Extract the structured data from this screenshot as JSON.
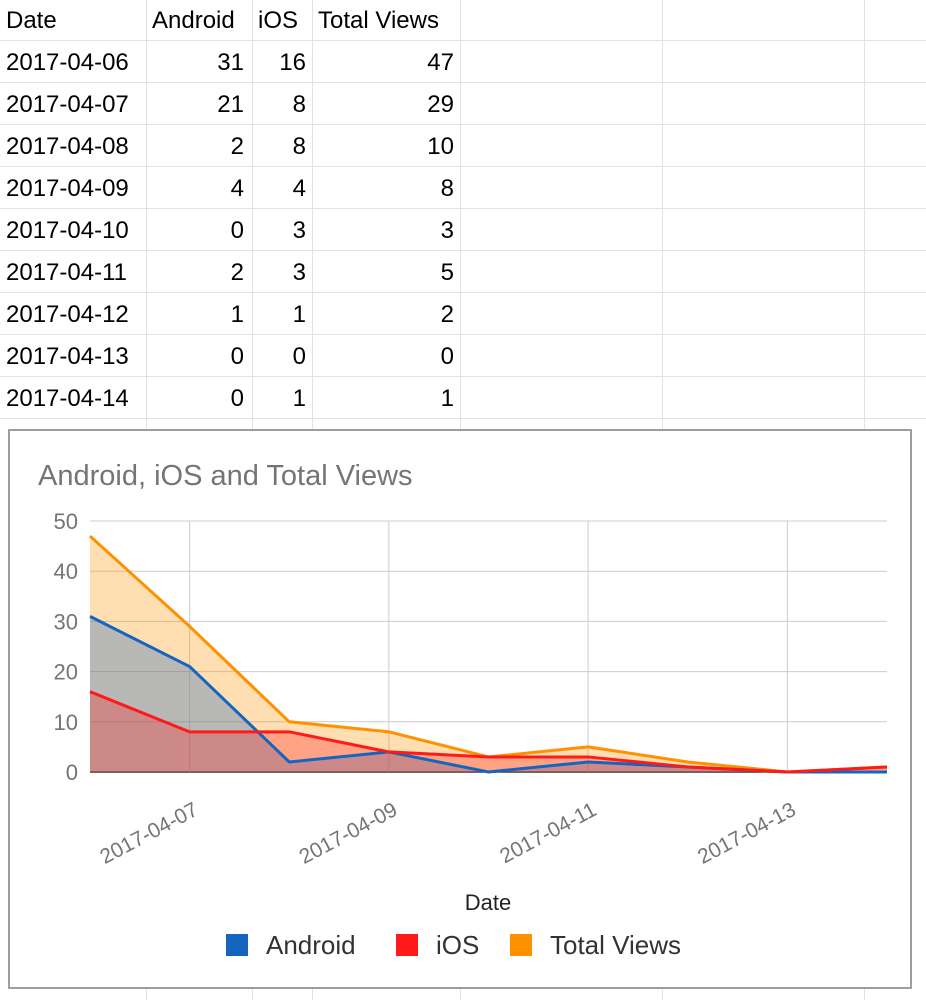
{
  "sheet": {
    "headers": [
      "Date",
      "Android",
      "iOS",
      "Total Views"
    ],
    "rows": [
      [
        "2017-04-06",
        "31",
        "16",
        "47"
      ],
      [
        "2017-04-07",
        "21",
        "8",
        "29"
      ],
      [
        "2017-04-08",
        "2",
        "8",
        "10"
      ],
      [
        "2017-04-09",
        "4",
        "4",
        "8"
      ],
      [
        "2017-04-10",
        "0",
        "3",
        "3"
      ],
      [
        "2017-04-11",
        "2",
        "3",
        "5"
      ],
      [
        "2017-04-12",
        "1",
        "1",
        "2"
      ],
      [
        "2017-04-13",
        "0",
        "0",
        "0"
      ],
      [
        "2017-04-14",
        "0",
        "1",
        "1"
      ]
    ]
  },
  "chart_data": {
    "type": "area",
    "title": "Android, iOS and Total Views",
    "xlabel": "Date",
    "ylabel": "",
    "x": [
      "2017-04-06",
      "2017-04-07",
      "2017-04-08",
      "2017-04-09",
      "2017-04-10",
      "2017-04-11",
      "2017-04-12",
      "2017-04-13",
      "2017-04-14"
    ],
    "x_tick_labels": [
      "2017-04-07",
      "2017-04-09",
      "2017-04-11",
      "2017-04-13"
    ],
    "ylim": [
      0,
      50
    ],
    "y_ticks": [
      "0",
      "10",
      "20",
      "30",
      "40",
      "50"
    ],
    "grid": true,
    "legend_position": "bottom",
    "series": [
      {
        "name": "Android",
        "color": "#1565c0",
        "values": [
          31,
          21,
          2,
          4,
          0,
          2,
          1,
          0,
          0
        ]
      },
      {
        "name": "iOS",
        "color": "#ff1a1a",
        "values": [
          16,
          8,
          8,
          4,
          3,
          3,
          1,
          0,
          1
        ]
      },
      {
        "name": "Total Views",
        "color": "#ff9100",
        "values": [
          47,
          29,
          10,
          8,
          3,
          5,
          2,
          0,
          1
        ]
      }
    ]
  }
}
